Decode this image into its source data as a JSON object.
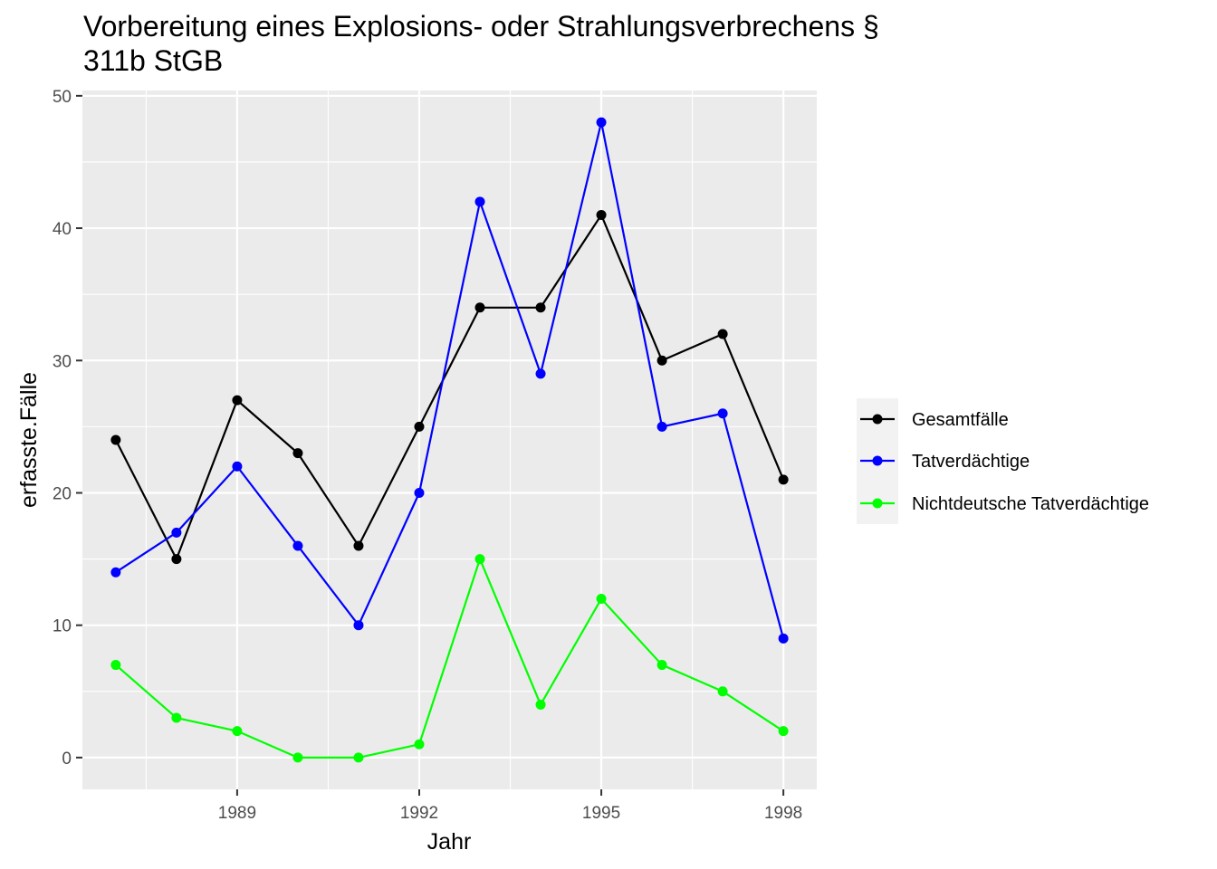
{
  "chart_data": {
    "type": "line",
    "title": "Vorbereitung eines Explosions- oder Strahlungsverbrechens §\n311b StGB",
    "xlabel": "Jahr",
    "ylabel": "erfasste.Fälle",
    "x": [
      1987,
      1988,
      1989,
      1990,
      1991,
      1992,
      1993,
      1994,
      1995,
      1996,
      1997,
      1998
    ],
    "xlim": [
      1986.45,
      1998.55
    ],
    "ylim": [
      -2.4,
      50.4
    ],
    "x_ticks": [
      1989,
      1992,
      1995,
      1998
    ],
    "x_minor_ticks": [
      1987.5,
      1990.5,
      1993.5,
      1996.5
    ],
    "y_ticks": [
      0,
      10,
      20,
      30,
      40,
      50
    ],
    "y_minor_ticks": [
      5,
      15,
      25,
      35,
      45
    ],
    "grid": true,
    "legend_position": "right",
    "series": [
      {
        "name": "Gesamtfälle",
        "color": "#000000",
        "values": [
          24,
          15,
          27,
          23,
          16,
          25,
          34,
          34,
          41,
          30,
          32,
          21
        ]
      },
      {
        "name": "Tatverdächtige",
        "color": "#0000ff",
        "values": [
          14,
          17,
          22,
          16,
          10,
          20,
          42,
          29,
          48,
          25,
          26,
          9
        ]
      },
      {
        "name": "Nichtdeutsche Tatverdächtige",
        "color": "#00ff00",
        "values": [
          7,
          3,
          2,
          0,
          0,
          1,
          15,
          4,
          12,
          7,
          5,
          2
        ]
      }
    ]
  }
}
